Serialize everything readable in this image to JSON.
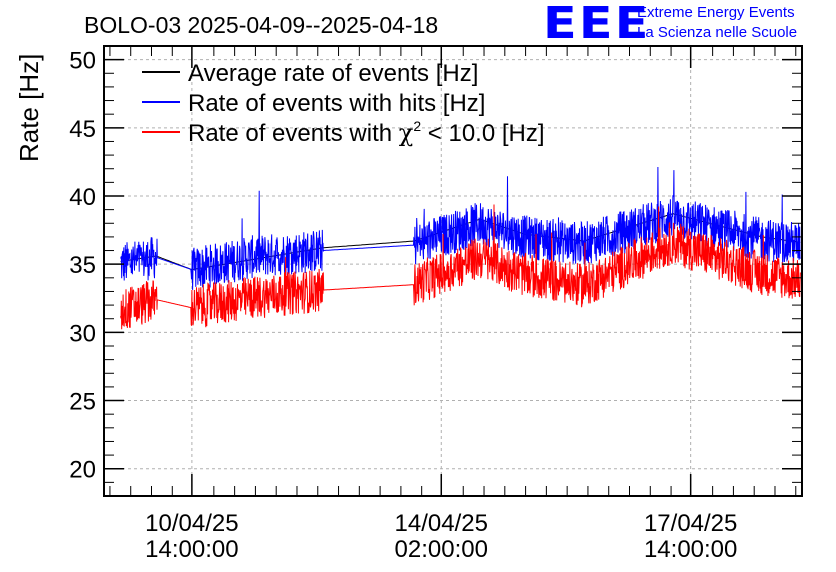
{
  "title": "BOLO-03 2025-04-09--2025-04-18",
  "branding": {
    "logo_text": "EEE",
    "line1": "Extreme Energy Events",
    "line2": "La Scienza nelle Scuole",
    "color": "#0000ff"
  },
  "chart_data": {
    "type": "line",
    "ylabel": "Rate [Hz]",
    "xlabel": "",
    "ylim": [
      18,
      51
    ],
    "yticks": [
      20,
      25,
      30,
      35,
      40,
      45,
      50
    ],
    "x_unit": "hours after 2025-04-09 00:00",
    "xlim": [
      8.4,
      243.5
    ],
    "xticks": [
      {
        "x": 38,
        "line1": "10/04/25",
        "line2": "14:00:00"
      },
      {
        "x": 122,
        "line1": "14/04/25",
        "line2": "02:00:00"
      },
      {
        "x": 206,
        "line1": "17/04/25",
        "line2": "14:00:00"
      }
    ],
    "grid": true,
    "legend_position": "top-left",
    "gaps": [
      [
        26,
        38
      ],
      [
        82,
        113
      ]
    ],
    "series": [
      {
        "name": "Average rate of events [Hz]",
        "color": "#000000",
        "spread": 0.0,
        "points": [
          [
            14,
            35.2
          ],
          [
            26,
            35.6
          ],
          [
            38,
            34.6
          ],
          [
            82,
            36.2
          ],
          [
            113,
            36.7
          ],
          [
            135,
            38.3
          ],
          [
            150,
            37.2
          ],
          [
            170,
            36.7
          ],
          [
            200,
            38.7
          ],
          [
            230,
            37.0
          ],
          [
            243,
            36.6
          ]
        ]
      },
      {
        "name": "Rate of events with hits [Hz]",
        "color": "#0000ff",
        "spread": 1.6,
        "points": [
          [
            14,
            35.0
          ],
          [
            26,
            35.5
          ],
          [
            38,
            34.6
          ],
          [
            60,
            35.6
          ],
          [
            82,
            36.0
          ],
          [
            113,
            36.4
          ],
          [
            135,
            38.0
          ],
          [
            150,
            37.0
          ],
          [
            170,
            36.5
          ],
          [
            200,
            38.5
          ],
          [
            230,
            36.8
          ],
          [
            243,
            36.5
          ]
        ]
      },
      {
        "name": "Rate of events with χ² < 10.0 [Hz]",
        "color": "#ff0000",
        "spread": 1.6,
        "points": [
          [
            14,
            31.6
          ],
          [
            26,
            32.4
          ],
          [
            38,
            31.8
          ],
          [
            60,
            32.6
          ],
          [
            82,
            33.1
          ],
          [
            113,
            33.5
          ],
          [
            135,
            35.5
          ],
          [
            150,
            34.2
          ],
          [
            170,
            33.4
          ],
          [
            200,
            36.6
          ],
          [
            230,
            34.3
          ],
          [
            243,
            33.8
          ]
        ]
      }
    ],
    "legend": [
      {
        "text": "Average rate of events [Hz]",
        "color": "#000000"
      },
      {
        "text": "Rate of events with hits [Hz]",
        "color": "#0000ff"
      },
      {
        "text_prefix": "Rate of events with ",
        "symbol": "χ",
        "superscript": "2",
        "text_suffix": " < 10.0 [Hz]",
        "color": "#ff0000"
      }
    ]
  }
}
